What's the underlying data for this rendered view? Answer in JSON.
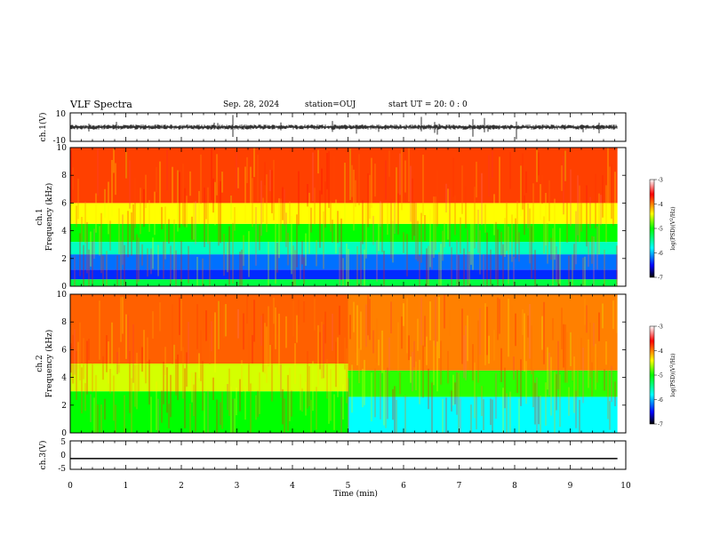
{
  "header": {
    "title": "VLF Spectra",
    "date": "Sep. 28, 2024",
    "station": "station=OUJ",
    "start": "start UT =  20: 0  : 0"
  },
  "chart_data": [
    {
      "type": "line",
      "name": "waveform-ch1",
      "ylabel": "ch.1(V)",
      "ylim": [
        -10,
        10
      ],
      "yticklabels": [
        "10",
        "-10"
      ],
      "x_range_min": [
        0,
        9.85
      ],
      "baseline_v": 0,
      "noise_envelope_v": [
        -3,
        3
      ],
      "spike_max_v": 9
    },
    {
      "type": "heatmap",
      "name": "spectrogram-ch1",
      "ylabel": "ch.1 Frequency (kHz)",
      "xlim": [
        0,
        10
      ],
      "ylim": [
        0,
        10
      ],
      "data_x_end": 9.85,
      "yticks": [
        "0",
        "2",
        "4",
        "6",
        "8",
        "10"
      ],
      "colorbar": {
        "label": "log(PSD)(V²/Hz)",
        "range": [
          -7,
          -3
        ],
        "ticks": [
          "-3",
          "-4",
          "-5",
          "-6",
          "-7"
        ]
      },
      "band_levels": [
        {
          "f_khz": [
            0,
            0.5
          ],
          "log_psd": -5.2
        },
        {
          "f_khz": [
            0.5,
            1.2
          ],
          "log_psd": -6.4
        },
        {
          "f_khz": [
            1.2,
            2.3
          ],
          "log_psd": -6.2
        },
        {
          "f_khz": [
            2.3,
            3.2
          ],
          "log_psd": -5.6
        },
        {
          "f_khz": [
            3.2,
            4.5
          ],
          "log_psd": -5.0
        },
        {
          "f_khz": [
            4.5,
            6
          ],
          "log_psd": -4.4
        },
        {
          "f_khz": [
            6,
            10
          ],
          "log_psd": -3.8
        }
      ]
    },
    {
      "type": "heatmap",
      "name": "spectrogram-ch2",
      "ylabel": "ch.2 Frequency (kHz)",
      "xlim": [
        0,
        10
      ],
      "ylim": [
        0,
        10
      ],
      "data_x_end": 9.85,
      "yticks": [
        "0",
        "2",
        "4",
        "6",
        "8",
        "10"
      ],
      "colorbar": {
        "label": "log(PSD)(V²/Hz)",
        "range": [
          -7,
          -3
        ],
        "ticks": [
          "-3",
          "-4",
          "-5",
          "-6",
          "-7"
        ]
      },
      "band_levels_before_5min": [
        {
          "f_khz": [
            0,
            3
          ],
          "log_psd": -5.0
        },
        {
          "f_khz": [
            3,
            5
          ],
          "log_psd": -4.5
        },
        {
          "f_khz": [
            5,
            10
          ],
          "log_psd": -3.9
        }
      ],
      "band_levels_after_5min": [
        {
          "f_khz": [
            0,
            2.6
          ],
          "log_psd": -5.8
        },
        {
          "f_khz": [
            2.6,
            4.5
          ],
          "log_psd": -4.9
        },
        {
          "f_khz": [
            4.5,
            10
          ],
          "log_psd": -4.0
        }
      ]
    },
    {
      "type": "line",
      "name": "waveform-ch3",
      "ylabel": "ch.3(V)",
      "ylim": [
        -5,
        5
      ],
      "yticklabels": [
        "5",
        "0",
        "-5"
      ],
      "x_range_min": [
        0,
        9.85
      ],
      "constant_v": -1.2
    }
  ],
  "xaxis": {
    "label": "Time (min)",
    "range": [
      0,
      10
    ],
    "ticks": [
      "0",
      "1",
      "2",
      "3",
      "4",
      "5",
      "6",
      "7",
      "8",
      "9",
      "10"
    ]
  },
  "colorbar_colors": [
    "#000000",
    "#0000ff",
    "#00ffff",
    "#00ff00",
    "#ffff00",
    "#ff0000",
    "#ffffff"
  ]
}
